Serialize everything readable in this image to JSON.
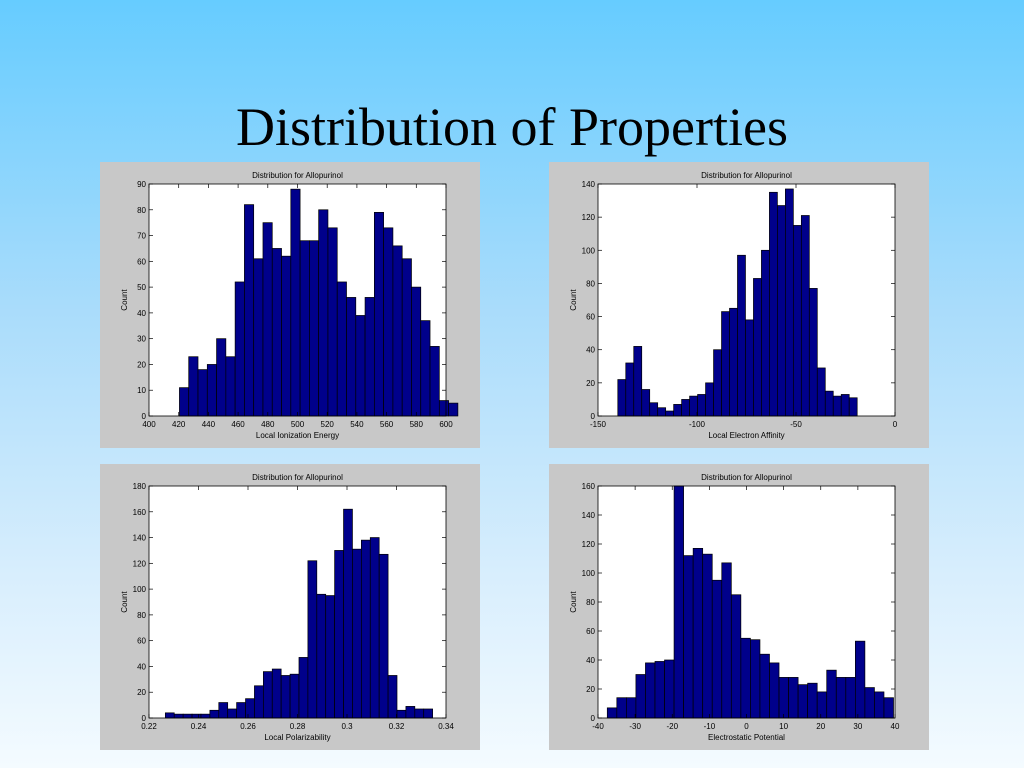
{
  "slide": {
    "title": "Distribution of Properties"
  },
  "colors": {
    "bar_fill": "#00008b",
    "bar_stroke": "#000000",
    "panel_bg": "#c8c8c8",
    "plot_bg": "#ffffff"
  },
  "chart_data": [
    {
      "type": "bar",
      "title": "Distribution for Allopurinol",
      "xlabel": "Local Ionization Energy",
      "ylabel": "Count",
      "xlim": [
        400,
        600
      ],
      "ylim": [
        0,
        90
      ],
      "xticks": [
        "400",
        "420",
        "440",
        "460",
        "480",
        "500",
        "520",
        "540",
        "560",
        "580",
        "600"
      ],
      "yticks": [
        "0",
        "10",
        "20",
        "30",
        "40",
        "50",
        "60",
        "70",
        "80",
        "90"
      ],
      "bin_start": 420.5,
      "bin_width": 6.25,
      "values": [
        11,
        23,
        18,
        20,
        30,
        23,
        52,
        82,
        61,
        75,
        65,
        62,
        88,
        68,
        68,
        80,
        73,
        52,
        46,
        39,
        46,
        79,
        73,
        66,
        61,
        50,
        37,
        27,
        6,
        5
      ]
    },
    {
      "type": "bar",
      "title": "Distribution for Allopurinol",
      "xlabel": "Local Electron Affinity",
      "ylabel": "Count",
      "xlim": [
        -150,
        0
      ],
      "ylim": [
        0,
        140
      ],
      "xticks": [
        "-150",
        "-100",
        "-50",
        "0"
      ],
      "yticks": [
        "0",
        "20",
        "40",
        "60",
        "80",
        "100",
        "120",
        "140"
      ],
      "bin_start": -140,
      "bin_width": 4.03,
      "values": [
        22,
        32,
        42,
        16,
        8,
        5,
        3,
        7,
        10,
        12,
        13,
        20,
        40,
        63,
        65,
        97,
        58,
        83,
        100,
        135,
        127,
        137,
        115,
        121,
        77,
        29,
        15,
        12,
        13,
        11
      ]
    },
    {
      "type": "bar",
      "title": "Distribution for Allopurinol",
      "xlabel": "Local Polarizability",
      "ylabel": "Count",
      "xlim": [
        0.22,
        0.34
      ],
      "ylim": [
        0,
        180
      ],
      "xticks": [
        "0.22",
        "0.24",
        "0.26",
        "0.28",
        "0.3",
        "0.32",
        "0.34"
      ],
      "yticks": [
        "0",
        "20",
        "40",
        "60",
        "80",
        "100",
        "120",
        "140",
        "160",
        "180"
      ],
      "bin_start": 0.2266,
      "bin_width": 0.0036,
      "values": [
        4,
        3,
        3,
        3,
        3,
        6,
        12,
        7,
        12,
        15,
        25,
        36,
        38,
        33,
        34,
        47,
        122,
        96,
        95,
        130,
        162,
        131,
        138,
        140,
        127,
        33,
        6,
        9,
        7,
        7
      ]
    },
    {
      "type": "bar",
      "title": "Distribution for Allopurinol",
      "xlabel": "Electrostatic Potential",
      "ylabel": "Count",
      "xlim": [
        -40,
        40
      ],
      "ylim": [
        0,
        160
      ],
      "xticks": [
        "-40",
        "-30",
        "-20",
        "-10",
        "0",
        "10",
        "20",
        "30",
        "40"
      ],
      "yticks": [
        "0",
        "20",
        "40",
        "60",
        "80",
        "100",
        "120",
        "140",
        "160"
      ],
      "bin_start": -37.5,
      "bin_width": 2.57,
      "values": [
        7,
        14,
        14,
        30,
        38,
        39,
        40,
        160,
        112,
        117,
        113,
        95,
        107,
        85,
        55,
        54,
        44,
        38,
        28,
        28,
        23,
        24,
        18,
        33,
        28,
        28,
        53,
        21,
        18,
        14
      ]
    }
  ]
}
